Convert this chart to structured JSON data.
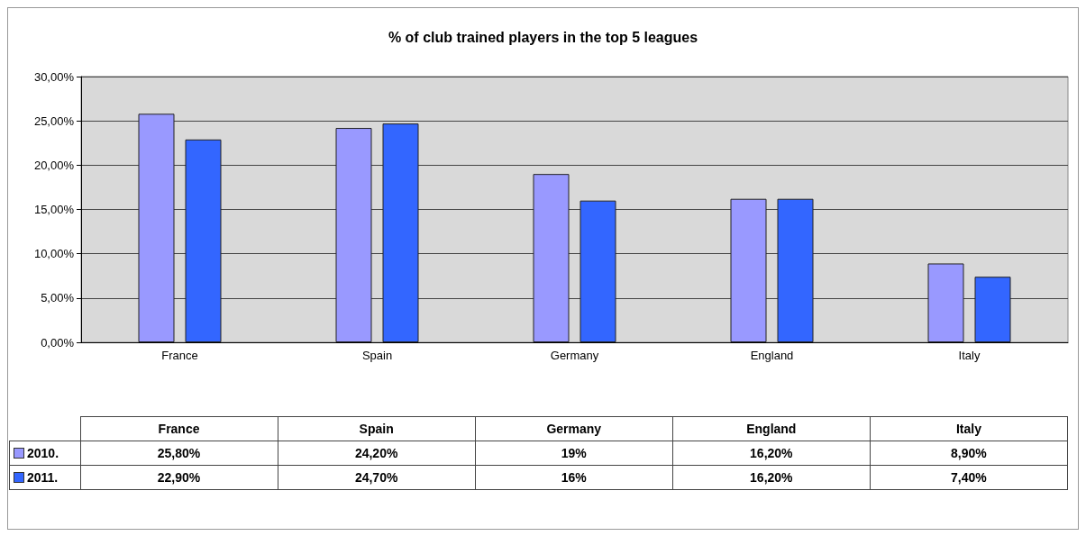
{
  "chart_data": {
    "type": "bar",
    "title": "% of club trained players in the top 5 leagues",
    "categories": [
      "France",
      "Spain",
      "Germany",
      "England",
      "Italy"
    ],
    "series": [
      {
        "name": "2010.",
        "color": "#9999ff",
        "values": [
          25.8,
          24.2,
          19,
          16.2,
          8.9
        ],
        "value_labels": [
          "25,80%",
          "24,20%",
          "19%",
          "16,20%",
          "8,90%"
        ]
      },
      {
        "name": "2011.",
        "color": "#3366ff",
        "values": [
          22.9,
          24.7,
          16,
          16.2,
          7.4
        ],
        "value_labels": [
          "22,90%",
          "24,70%",
          "16%",
          "16,20%",
          "7,40%"
        ]
      }
    ],
    "ylim": [
      0,
      30
    ],
    "yticks": [
      {
        "value": 0,
        "label": "0,00%"
      },
      {
        "value": 5,
        "label": "5,00%"
      },
      {
        "value": 10,
        "label": "10,00%"
      },
      {
        "value": 15,
        "label": "15,00%"
      },
      {
        "value": 20,
        "label": "20,00%"
      },
      {
        "value": 25,
        "label": "25,00%"
      },
      {
        "value": 30,
        "label": "30,00%"
      }
    ],
    "grid": "y",
    "legend": "bottom"
  }
}
